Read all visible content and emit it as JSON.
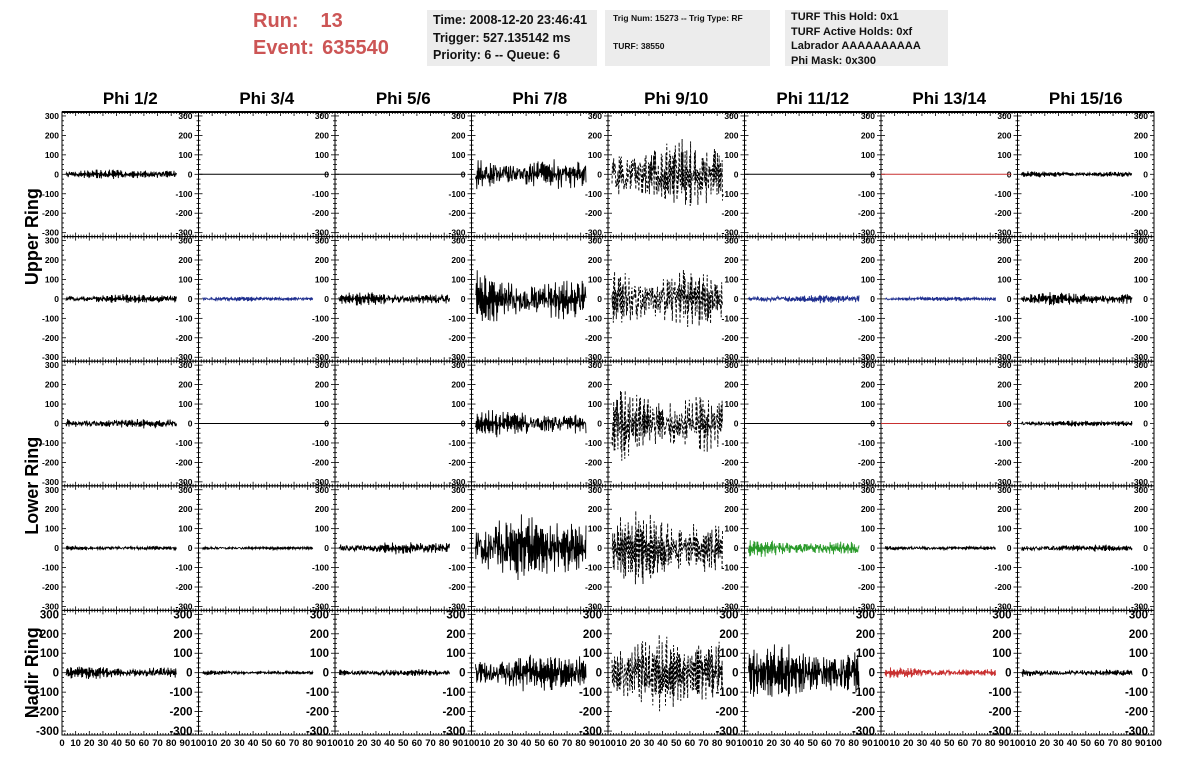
{
  "header": {
    "run_label": "Run:",
    "run_value": "13",
    "event_label": "Event:",
    "event_value": "635540",
    "time": "Time: 2008-12-20 23:46:41",
    "trigger": "Trigger: 527.135142 ms",
    "priority": "Priority: 6 -- Queue: 6",
    "trig_num": "Trig Num: 15273 -- Trig Type: RF",
    "turf": "TURF: 38550",
    "turf_hold": "TURF This Hold: 0x1",
    "turf_active": "TURF Active Holds: 0xf",
    "labrador": "Labrador AAAAAAAAAA",
    "phi_mask": "Phi Mask: 0x300",
    "accent_color": "#cc5555"
  },
  "chart_data": {
    "type": "line",
    "title": "",
    "columns": [
      "Phi 1/2",
      "Phi 3/4",
      "Phi 5/6",
      "Phi 7/8",
      "Phi 9/10",
      "Phi 11/12",
      "Phi 13/14",
      "Phi 15/16"
    ],
    "ring_labels": [
      "Upper Ring",
      "Lower Ring",
      "Nadir Ring"
    ],
    "ylim": [
      -310,
      310
    ],
    "xlim": [
      0,
      100
    ],
    "yticks": [
      -300,
      -200,
      -100,
      0,
      100,
      200,
      300
    ],
    "xticks": [
      0,
      10,
      20,
      30,
      40,
      50,
      60,
      70,
      80,
      90,
      100
    ],
    "xtick_labels": [
      "0",
      "10",
      "20",
      "30",
      "40",
      "50",
      "60",
      "70",
      "80",
      "90",
      "100"
    ],
    "legend": "none",
    "grid": false,
    "series_colors": {
      "default": "#000000",
      "blue": "#1f2f8f",
      "green": "#2a9a2a",
      "red": "#c83030"
    },
    "waveforms": [
      [
        {
          "amp": 30,
          "color": "default",
          "dashed": false
        },
        {
          "amp": 0,
          "color": "default",
          "dashed": false
        },
        {
          "amp": 0,
          "color": "default",
          "dashed": false
        },
        {
          "amp": 110,
          "color": "default",
          "dashed": false
        },
        {
          "amp": 240,
          "color": "default",
          "dashed": true
        },
        {
          "amp": 0,
          "color": "default",
          "dashed": false
        },
        {
          "amp": 0,
          "color": "red",
          "dashed": false
        },
        {
          "amp": 20,
          "color": "default",
          "dashed": false
        }
      ],
      [
        {
          "amp": 30,
          "color": "default",
          "dashed": false
        },
        {
          "amp": 15,
          "color": "blue",
          "dashed": false
        },
        {
          "amp": 40,
          "color": "default",
          "dashed": false
        },
        {
          "amp": 160,
          "color": "default",
          "dashed": false
        },
        {
          "amp": 220,
          "color": "default",
          "dashed": true
        },
        {
          "amp": 30,
          "color": "blue",
          "dashed": false
        },
        {
          "amp": 15,
          "color": "blue",
          "dashed": false
        },
        {
          "amp": 40,
          "color": "default",
          "dashed": false
        }
      ],
      [
        {
          "amp": 35,
          "color": "default",
          "dashed": false
        },
        {
          "amp": 0,
          "color": "default",
          "dashed": false
        },
        {
          "amp": 0,
          "color": "default",
          "dashed": false
        },
        {
          "amp": 80,
          "color": "default",
          "dashed": false
        },
        {
          "amp": 220,
          "color": "default",
          "dashed": true
        },
        {
          "amp": 0,
          "color": "default",
          "dashed": false
        },
        {
          "amp": 0,
          "color": "red",
          "dashed": false
        },
        {
          "amp": 20,
          "color": "default",
          "dashed": false
        }
      ],
      [
        {
          "amp": 15,
          "color": "default",
          "dashed": false
        },
        {
          "amp": 12,
          "color": "default",
          "dashed": false
        },
        {
          "amp": 40,
          "color": "default",
          "dashed": false
        },
        {
          "amp": 200,
          "color": "default",
          "dashed": false
        },
        {
          "amp": 210,
          "color": "default",
          "dashed": true
        },
        {
          "amp": 50,
          "color": "green",
          "dashed": false
        },
        {
          "amp": 15,
          "color": "default",
          "dashed": false
        },
        {
          "amp": 25,
          "color": "default",
          "dashed": false
        }
      ],
      [
        {
          "amp": 40,
          "color": "default",
          "dashed": false
        },
        {
          "amp": 15,
          "color": "default",
          "dashed": false
        },
        {
          "amp": 25,
          "color": "default",
          "dashed": false
        },
        {
          "amp": 130,
          "color": "default",
          "dashed": false
        },
        {
          "amp": 240,
          "color": "default",
          "dashed": true
        },
        {
          "amp": 170,
          "color": "default",
          "dashed": false
        },
        {
          "amp": 30,
          "color": "red",
          "dashed": false
        },
        {
          "amp": 25,
          "color": "default",
          "dashed": false
        }
      ]
    ]
  }
}
